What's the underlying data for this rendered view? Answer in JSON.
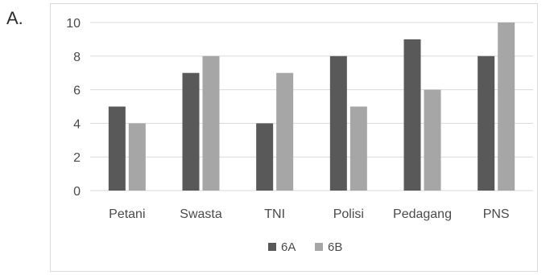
{
  "question_label": "A.",
  "chart_data": {
    "type": "bar",
    "categories": [
      "Petani",
      "Swasta",
      "TNI",
      "Polisi",
      "Pedagang",
      "PNS"
    ],
    "series": [
      {
        "name": "6A",
        "values": [
          5,
          7,
          4,
          8,
          9,
          8
        ],
        "color": "#595959"
      },
      {
        "name": "6B",
        "values": [
          4,
          8,
          7,
          5,
          6,
          10
        ],
        "color": "#a6a6a6"
      }
    ],
    "yticks": [
      0,
      2,
      4,
      6,
      8,
      10
    ],
    "ylim": [
      0,
      10
    ],
    "grid": true,
    "legend_position": "bottom",
    "gridline_color": "#d9d9d9"
  }
}
